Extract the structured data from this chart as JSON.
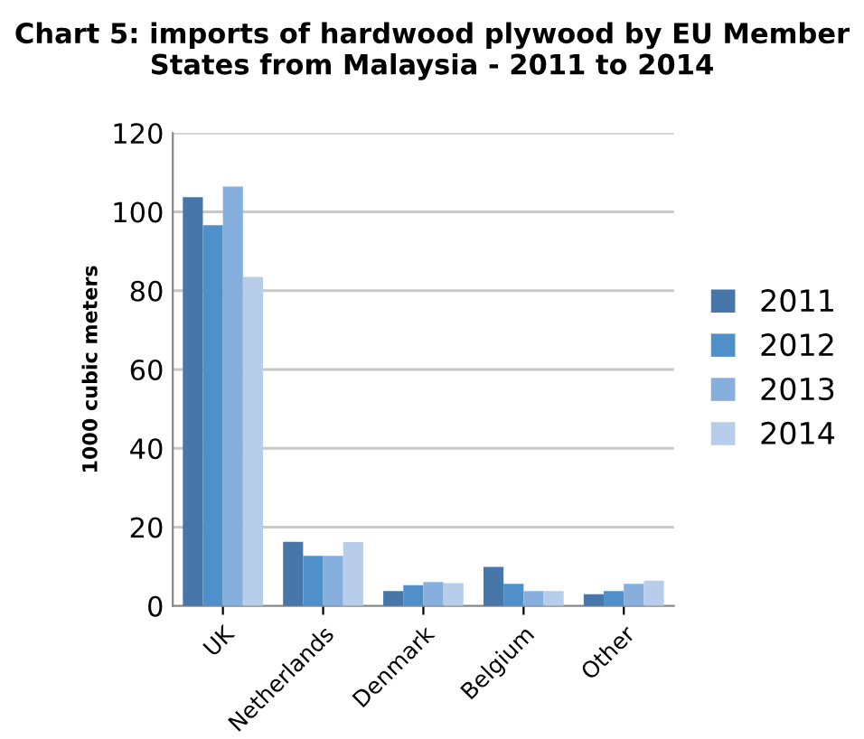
{
  "chart_data": {
    "type": "bar",
    "title": "Chart 5: imports of hardwood plywood by EU Member States from Malaysia - 2011 to 2014",
    "ylabel": "1000 cubic meters",
    "categories": [
      "UK",
      "Netherlands",
      "Denmark",
      "Belgium",
      "Other"
    ],
    "series": [
      {
        "name": "2011",
        "color": "#4677a8",
        "values": [
          103.7,
          16.3,
          3.8,
          9.9,
          3.0
        ]
      },
      {
        "name": "2012",
        "color": "#4f8fca",
        "values": [
          96.6,
          12.7,
          5.3,
          5.6,
          3.8
        ]
      },
      {
        "name": "2013",
        "color": "#86afdd",
        "values": [
          106.4,
          12.7,
          6.1,
          3.8,
          5.6
        ]
      },
      {
        "name": "2014",
        "color": "#b7cde9",
        "values": [
          83.5,
          16.2,
          5.8,
          3.8,
          6.4
        ]
      }
    ],
    "ylim": [
      0,
      120
    ],
    "yticks": [
      0,
      20,
      40,
      60,
      80,
      100,
      120
    ],
    "grid": "y",
    "legend": "right"
  }
}
